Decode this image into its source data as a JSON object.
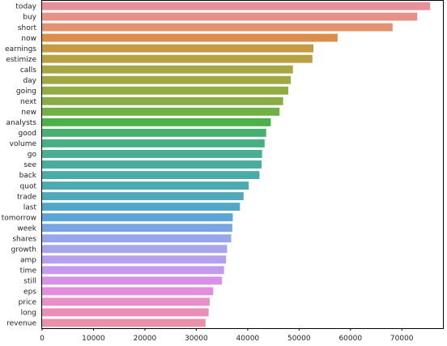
{
  "chart_data": {
    "type": "bar",
    "orientation": "horizontal",
    "title": "",
    "xlabel": "",
    "ylabel": "",
    "xlim": [
      0,
      78000
    ],
    "xticks": [
      0,
      10000,
      20000,
      30000,
      40000,
      50000,
      60000,
      70000
    ],
    "xtick_labels": [
      "0",
      "10000",
      "20000",
      "30000",
      "40000",
      "50000",
      "60000",
      "70000"
    ],
    "grid": false,
    "categories": [
      "today",
      "buy",
      "short",
      "now",
      "earnings",
      "estimize",
      "calls",
      "day",
      "going",
      "next",
      "new",
      "analysts",
      "good",
      "volume",
      "go",
      "see",
      "back",
      "quot",
      "trade",
      "last",
      "tomorrow",
      "week",
      "shares",
      "growth",
      "amp",
      "time",
      "still",
      "eps",
      "price",
      "long",
      "revenue"
    ],
    "values": [
      75500,
      73000,
      68200,
      57500,
      52800,
      52600,
      48800,
      48400,
      47900,
      46900,
      46200,
      44500,
      43600,
      43300,
      42800,
      42700,
      42300,
      40200,
      39200,
      38500,
      37100,
      37000,
      36800,
      36000,
      35800,
      35400,
      35000,
      33300,
      32600,
      32400,
      31800
    ],
    "colors": [
      "#e8909a",
      "#e69188",
      "#e3926f",
      "#dc8c4b",
      "#c49a44",
      "#b8a143",
      "#aaa544",
      "#a0a844",
      "#93ab43",
      "#87ad43",
      "#6fb144",
      "#4cb049",
      "#47b071",
      "#46af84",
      "#47ae92",
      "#48ad9c",
      "#4aaca6",
      "#4cabb0",
      "#4fa9ba",
      "#52a7c8",
      "#59a5d8",
      "#7aa5e3",
      "#96a6e8",
      "#a9a5eb",
      "#b4a0ec",
      "#c49aec",
      "#d592e7",
      "#e48ddc",
      "#e88fc9",
      "#e98eb9",
      "#e991aa"
    ]
  }
}
